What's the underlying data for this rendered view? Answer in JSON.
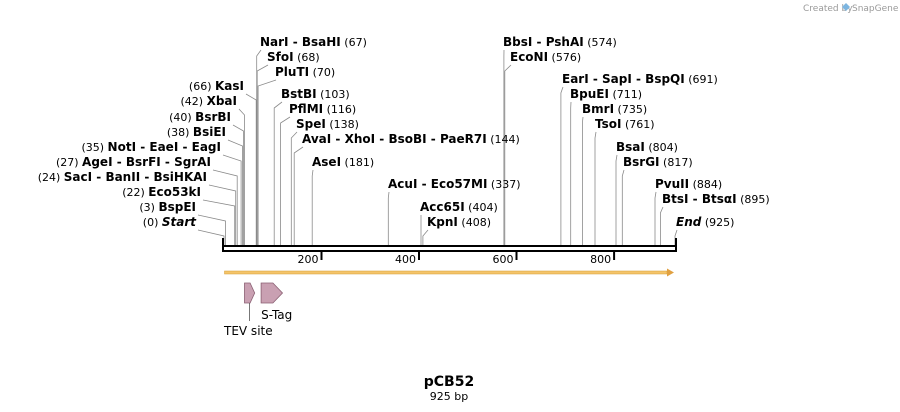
{
  "sequence": {
    "name": "pCB52",
    "length_label": "925 bp",
    "length_bp": 925
  },
  "brand": {
    "created_by": "Created by",
    "app_name": "SnapGene"
  },
  "colors": {
    "orf": "#f4c46a",
    "feature_fill": "#c9a0b2",
    "feature_stroke": "#8a5f72",
    "ruler": "#000000"
  },
  "ruler": {
    "ticks": [
      200,
      400,
      600,
      800
    ]
  },
  "site_groups": [
    {
      "side": "left",
      "pos": 0,
      "label": "(0)",
      "names": [
        "Start"
      ],
      "italic": true
    },
    {
      "side": "left",
      "pos": 3,
      "label": "(3)",
      "names": [
        "BspEI"
      ]
    },
    {
      "side": "left",
      "pos": 22,
      "label": "(22)",
      "names": [
        "Eco53kI"
      ]
    },
    {
      "side": "left",
      "pos": 24,
      "label": "(24)",
      "names": [
        "SacI",
        "BanII",
        "BsiHKAI"
      ]
    },
    {
      "side": "left",
      "pos": 27,
      "label": "(27)",
      "names": [
        "AgeI",
        "BsrFI",
        "SgrAI"
      ]
    },
    {
      "side": "left",
      "pos": 35,
      "label": "(35)",
      "names": [
        "NotI",
        "EaeI",
        "EagI"
      ]
    },
    {
      "side": "left",
      "pos": 38,
      "label": "(38)",
      "names": [
        "BsiEI"
      ]
    },
    {
      "side": "left",
      "pos": 40,
      "label": "(40)",
      "names": [
        "BsrBI"
      ]
    },
    {
      "side": "left",
      "pos": 42,
      "label": "(42)",
      "names": [
        "XbaI"
      ]
    },
    {
      "side": "left",
      "pos": 66,
      "label": "(66)",
      "names": [
        "KasI"
      ]
    },
    {
      "side": "right",
      "pos": 67,
      "label": "(67)",
      "names": [
        "NarI",
        "BsaHI"
      ]
    },
    {
      "side": "right",
      "pos": 68,
      "label": "(68)",
      "names": [
        "SfoI"
      ]
    },
    {
      "side": "right",
      "pos": 70,
      "label": "(70)",
      "names": [
        "PluTI"
      ]
    },
    {
      "side": "right",
      "pos": 103,
      "label": "(103)",
      "names": [
        "BstBI"
      ]
    },
    {
      "side": "right",
      "pos": 116,
      "label": "(116)",
      "names": [
        "PflMI"
      ]
    },
    {
      "side": "right",
      "pos": 138,
      "label": "(138)",
      "names": [
        "SpeI"
      ]
    },
    {
      "side": "right",
      "pos": 144,
      "label": "(144)",
      "names": [
        "AvaI",
        "XhoI",
        "BsoBI",
        "PaeR7I"
      ]
    },
    {
      "side": "right",
      "pos": 181,
      "label": "(181)",
      "names": [
        "AseI"
      ]
    },
    {
      "side": "right",
      "pos": 337,
      "label": "(337)",
      "names": [
        "AcuI",
        "Eco57MI"
      ]
    },
    {
      "side": "right",
      "pos": 404,
      "label": "(404)",
      "names": [
        "Acc65I"
      ]
    },
    {
      "side": "right",
      "pos": 408,
      "label": "(408)",
      "names": [
        "KpnI"
      ]
    },
    {
      "side": "right",
      "pos": 574,
      "label": "(574)",
      "names": [
        "BbsI",
        "PshAI"
      ]
    },
    {
      "side": "right",
      "pos": 576,
      "label": "(576)",
      "names": [
        "EcoNI"
      ]
    },
    {
      "side": "right",
      "pos": 691,
      "label": "(691)",
      "names": [
        "EarI",
        "SapI",
        "BspQI"
      ]
    },
    {
      "side": "right",
      "pos": 711,
      "label": "(711)",
      "names": [
        "BpuEI"
      ]
    },
    {
      "side": "right",
      "pos": 735,
      "label": "(735)",
      "names": [
        "BmrI"
      ]
    },
    {
      "side": "right",
      "pos": 761,
      "label": "(761)",
      "names": [
        "TsoI"
      ]
    },
    {
      "side": "right",
      "pos": 804,
      "label": "(804)",
      "names": [
        "BsaI"
      ]
    },
    {
      "side": "right",
      "pos": 817,
      "label": "(817)",
      "names": [
        "BsrGI"
      ]
    },
    {
      "side": "right",
      "pos": 884,
      "label": "(884)",
      "names": [
        "PvuII"
      ]
    },
    {
      "side": "right",
      "pos": 895,
      "label": "(895)",
      "names": [
        "BtsI",
        "BtsαI"
      ]
    },
    {
      "side": "right",
      "pos": 925,
      "label": "(925)",
      "names": [
        "End"
      ],
      "italic": true
    }
  ],
  "features": [
    {
      "name": "TEV site",
      "start": 42,
      "end": 63,
      "direction": "forward"
    },
    {
      "name": "S-Tag",
      "start": 76,
      "end": 120,
      "direction": "forward"
    }
  ],
  "orf": {
    "start": 1,
    "end": 925,
    "direction": "forward"
  }
}
